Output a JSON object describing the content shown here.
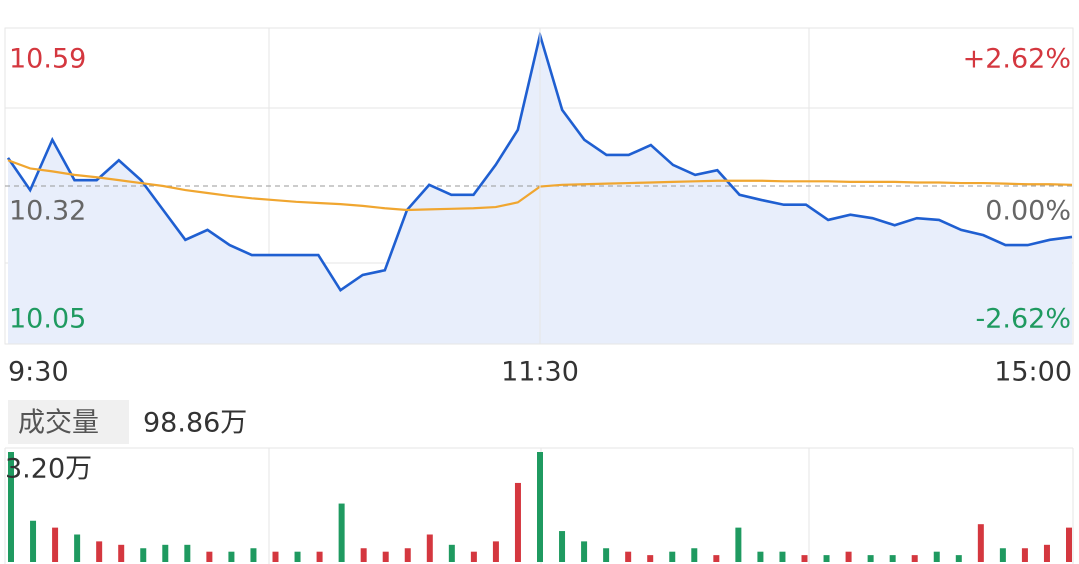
{
  "chart_data": [
    {
      "type": "line",
      "x": [
        0,
        5,
        10,
        15,
        20,
        25,
        30,
        35,
        40,
        45,
        50,
        55,
        60,
        65,
        70,
        75,
        80,
        85,
        90,
        95,
        100,
        105,
        110,
        115,
        120,
        125,
        130,
        135,
        140,
        145,
        150,
        155,
        160,
        165,
        170,
        175,
        180,
        185,
        190,
        195,
        200,
        205,
        210,
        215,
        220,
        225,
        230,
        235,
        240
      ],
      "xlim": [
        0,
        240
      ],
      "xticks": [
        {
          "value": 0,
          "label": "9:30"
        },
        {
          "value": 120,
          "label": "11:30"
        },
        {
          "value": 240,
          "label": "15:00"
        }
      ],
      "ylim": [
        10.05,
        10.59
      ],
      "yticks": [
        10.05,
        10.32,
        10.59
      ],
      "y2lim": [
        -2.62,
        2.62
      ],
      "y2ticks": [
        {
          "value": -2.62,
          "label": "-2.62%"
        },
        {
          "value": 0,
          "label": "0.00%"
        },
        {
          "value": 2.62,
          "label": "+2.62%"
        }
      ],
      "up_color": "#d4373f",
      "down_color": "#1f9a60",
      "flat_color": "#666666",
      "series": [
        {
          "color": "#1f5fd1",
          "fill": "#e8eefb",
          "values": [
            10.368,
            10.313,
            10.399,
            10.33,
            10.33,
            10.364,
            10.33,
            10.279,
            10.228,
            10.245,
            10.219,
            10.202,
            10.202,
            10.202,
            10.202,
            10.142,
            10.168,
            10.176,
            10.279,
            10.322,
            10.305,
            10.305,
            10.356,
            10.416,
            10.578,
            10.45,
            10.399,
            10.373,
            10.373,
            10.39,
            10.356,
            10.339,
            10.347,
            10.305,
            10.296,
            10.288,
            10.288,
            10.262,
            10.271,
            10.265,
            10.253,
            10.265,
            10.262,
            10.245,
            10.236,
            10.219,
            10.219,
            10.228,
            10.233
          ]
        },
        {
          "color": "#f0a630",
          "values": [
            10.364,
            10.35,
            10.345,
            10.339,
            10.335,
            10.33,
            10.325,
            10.32,
            10.313,
            10.308,
            10.303,
            10.299,
            10.296,
            10.293,
            10.291,
            10.289,
            10.286,
            10.282,
            10.279,
            10.28,
            10.281,
            10.282,
            10.284,
            10.292,
            10.319,
            10.322,
            10.323,
            10.324,
            10.325,
            10.326,
            10.327,
            10.328,
            10.329,
            10.329,
            10.329,
            10.328,
            10.328,
            10.328,
            10.327,
            10.327,
            10.327,
            10.326,
            10.326,
            10.325,
            10.325,
            10.324,
            10.323,
            10.323,
            10.322
          ]
        }
      ]
    },
    {
      "type": "bar",
      "title": "成交量",
      "subtitle": "98.86万",
      "x": [
        0,
        5,
        10,
        15,
        20,
        25,
        30,
        35,
        40,
        45,
        50,
        55,
        60,
        65,
        70,
        75,
        80,
        85,
        90,
        95,
        100,
        105,
        110,
        115,
        120,
        125,
        130,
        135,
        140,
        145,
        150,
        155,
        160,
        165,
        170,
        175,
        180,
        185,
        190,
        195,
        200,
        205,
        210,
        215,
        220,
        225,
        230,
        235,
        240
      ],
      "xlim": [
        0,
        240
      ],
      "ylim": [
        0,
        3.2
      ],
      "yticks": [
        {
          "value": 3.2,
          "label": "3.20万"
        }
      ],
      "values": [
        3.2,
        1.2,
        1.0,
        0.8,
        0.6,
        0.5,
        0.4,
        0.5,
        0.5,
        0.3,
        0.3,
        0.4,
        0.3,
        0.3,
        0.3,
        1.7,
        0.4,
        0.3,
        0.4,
        0.8,
        0.5,
        0.3,
        0.6,
        2.3,
        3.2,
        0.9,
        0.6,
        0.4,
        0.3,
        0.2,
        0.3,
        0.4,
        0.2,
        1.0,
        0.3,
        0.3,
        0.2,
        0.2,
        0.3,
        0.2,
        0.2,
        0.2,
        0.3,
        0.2,
        1.1,
        0.4,
        0.4,
        0.5,
        1.0
      ],
      "colors": [
        "#1f9a60",
        "#1f9a60",
        "#d4373f",
        "#1f9a60",
        "#d4373f",
        "#d4373f",
        "#1f9a60",
        "#1f9a60",
        "#1f9a60",
        "#d4373f",
        "#1f9a60",
        "#1f9a60",
        "#d4373f",
        "#1f9a60",
        "#d4373f",
        "#1f9a60",
        "#d4373f",
        "#d4373f",
        "#d4373f",
        "#d4373f",
        "#1f9a60",
        "#d4373f",
        "#d4373f",
        "#d4373f",
        "#1f9a60",
        "#1f9a60",
        "#1f9a60",
        "#1f9a60",
        "#d4373f",
        "#d4373f",
        "#1f9a60",
        "#1f9a60",
        "#d4373f",
        "#1f9a60",
        "#1f9a60",
        "#1f9a60",
        "#d4373f",
        "#1f9a60",
        "#d4373f",
        "#1f9a60",
        "#1f9a60",
        "#d4373f",
        "#1f9a60",
        "#1f9a60",
        "#d4373f",
        "#1f9a60",
        "#d4373f",
        "#d4373f",
        "#d4373f"
      ]
    }
  ]
}
